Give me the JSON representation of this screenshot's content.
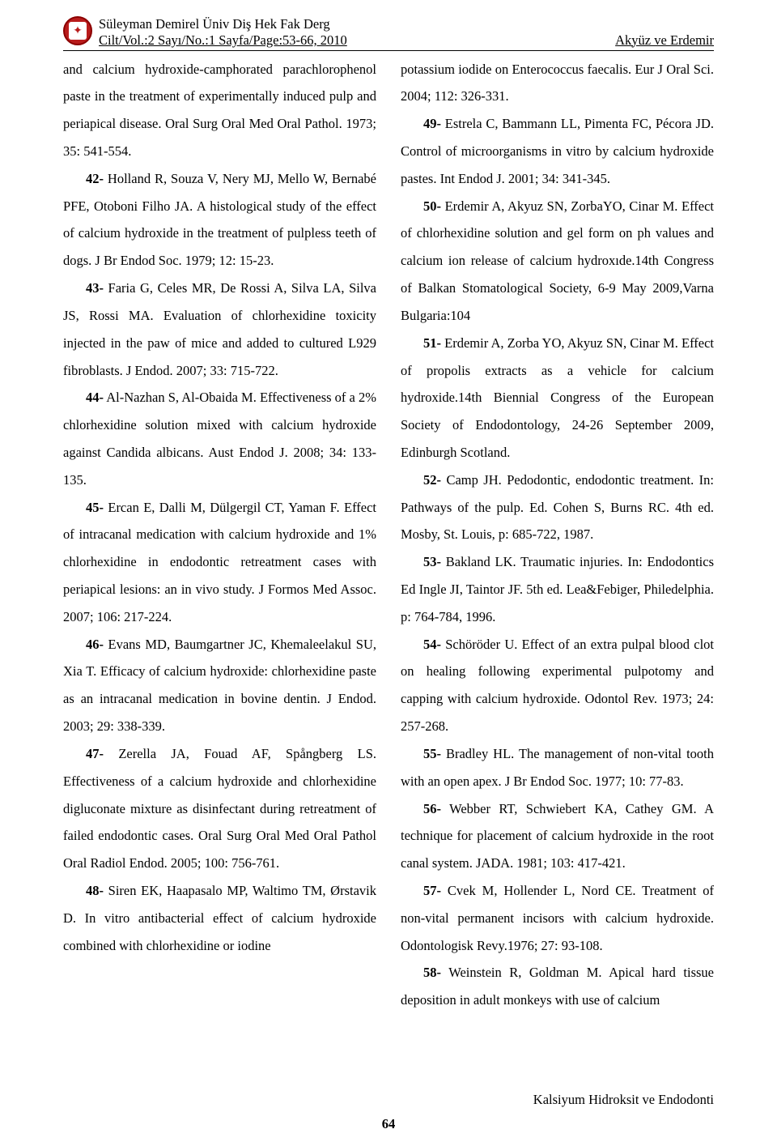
{
  "header": {
    "journal": "Süleyman Demirel Üniv Diş Hek Fak Derg",
    "citation": "Cilt/Vol.:2 Sayı/No.:1 Sayfa/Page:53-66, 2010",
    "authors": "Akyüz ve Erdemir"
  },
  "left": {
    "p1a": "and calcium hydroxide-camphorated parachlorophenol paste in the treatment of experimentally induced pulp and periapical disease. Oral Surg Oral Med Oral Pathol. 1973; 35: 541-554.",
    "r42b": "42-",
    "r42": " Holland R, Souza V, Nery MJ, Mello W, Bernabé PFE, Otoboni Filho JA. A histological study of the effect of calcium hydroxide in the treatment of pulpless teeth of dogs. J Br Endod Soc. 1979; 12: 15-23.",
    "r43b": "43-",
    "r43": " Faria G, Celes MR, De Rossi A, Silva LA, Silva JS, Rossi MA. Evaluation of chlorhexidine toxicity injected in the paw of mice and added to cultured L929 fibroblasts. J Endod. 2007; 33: 715-722.",
    "r44b": "44-",
    "r44": " Al-Nazhan S, Al-Obaida M. Effectiveness of a 2% chlorhexidine solution mixed with calcium hydroxide against Candida albicans. Aust Endod J. 2008; 34: 133-135.",
    "r45b": "45-",
    "r45": " Ercan E, Dalli M, Dülgergil CT, Yaman F. Effect of intracanal medication with calcium hydroxide and 1% chlorhexidine in endodontic retreatment cases with periapical lesions: an in vivo study. J Formos Med Assoc. 2007; 106: 217-224.",
    "r46b": "46-",
    "r46": " Evans MD, Baumgartner JC, Khemaleelakul SU, Xia T. Efficacy of calcium hydroxide: chlorhexidine paste as an intracanal medication in bovine dentin. J Endod. 2003; 29: 338-339.",
    "r47b": "47-",
    "r47": " Zerella JA, Fouad AF, Spångberg LS. Effectiveness of a calcium hydroxide and chlorhexidine digluconate mixture as disinfectant during retreatment of failed endodontic cases. Oral Surg Oral Med Oral Pathol Oral Radiol Endod. 2005; 100: 756-761.",
    "r48b": "48-",
    "r48": " Siren EK, Haapasalo MP, Waltimo TM, Ørstavik D. In vitro antibacterial effect of calcium hydroxide combined with chlorhexidine or iodine"
  },
  "right": {
    "p1a": "potassium iodide on Enterococcus faecalis. Eur J Oral Sci. 2004; 112: 326-331.",
    "r49b": "49-",
    "r49": " Estrela C, Bammann LL, Pimenta FC, Pécora JD. Control of microorganisms in vitro by calcium hydroxide pastes. Int Endod J. 2001; 34: 341-345.",
    "r50b": "50-",
    "r50": " Erdemir A, Akyuz SN, ZorbaYO, Cinar M. Effect of chlorhexidine solution and gel form on ph values and calcium ion release of calcium hydroxıde.14th Congress of Balkan Stomatological Society, 6-9 May 2009,Varna Bulgaria:104",
    "r51b": "51-",
    "r51": " Erdemir A, Zorba YO, Akyuz SN, Cinar M. Effect of  propolis extracts as a vehicle for calcium hydroxide.14th Biennial Congress of  the European Society of Endodontology, 24-26 September 2009, Edinburgh Scotland.",
    "r52b": "52-",
    "r52": " Camp JH. Pedodontic, endodontic treatment. In: Pathways of the pulp. Ed.  Cohen S, Burns RC. 4th ed. Mosby, St. Louis, p: 685-722, 1987.",
    "r53b": "53-",
    "r53": " Bakland LK. Traumatic injuries. In: Endodontics Ed Ingle JI, Taintor JF. 5th ed. Lea&Febiger, Philedelphia. p: 764-784, 1996.",
    "r54b": "54-",
    "r54": " Schöröder U. Effect of an extra pulpal blood clot on healing following experimental pulpotomy and capping with calcium hydroxide. Odontol Rev. 1973; 24: 257-268.",
    "r55b": "55-",
    "r55": " Bradley HL. The management of non-vital tooth with an open apex. J Br Endod Soc. 1977; 10: 77-83.",
    "r56b": "56-",
    "r56": " Webber RT, Schwiebert KA, Cathey GM. A technique for placement of calcium hydroxide in the root canal system. JADA. 1981; 103: 417-421.",
    "r57b": "57-",
    "r57": " Cvek M, Hollender L, Nord CE. Treatment of non-vital permanent incisors with calcium hydroxide. Odontologisk Revy.1976; 27: 93-108.",
    "r58b": "58-",
    "r58": " Weinstein R, Goldman M. Apical hard tissue deposition in adult monkeys with use of calcium"
  },
  "footer": "Kalsiyum Hidroksit ve Endodonti",
  "page": "64"
}
